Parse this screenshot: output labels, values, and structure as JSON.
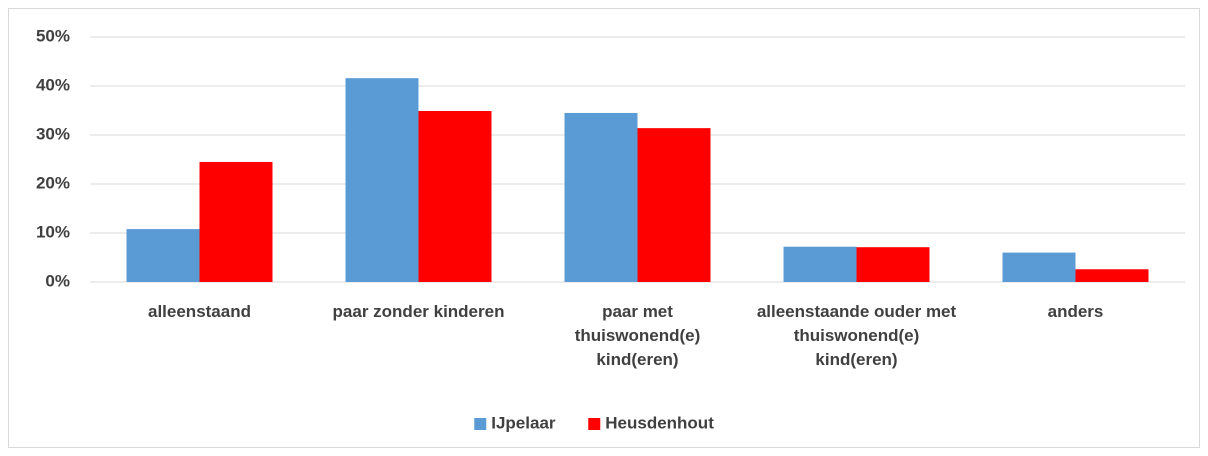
{
  "chart_data": {
    "type": "bar",
    "categories": [
      "alleenstaand",
      "paar zonder kinderen",
      "paar met thuiswonend(e) kind(eren)",
      "alleenstaande ouder met thuiswonend(e) kind(eren)",
      "anders"
    ],
    "series": [
      {
        "name": "IJpelaar",
        "color": "#5b9bd5",
        "values": [
          10.8,
          41.6,
          34.5,
          7.2,
          6.0
        ]
      },
      {
        "name": "Heusdenhout",
        "color": "#ff0000",
        "values": [
          24.5,
          34.9,
          31.4,
          7.1,
          2.6
        ]
      }
    ],
    "ylim": [
      0,
      50
    ],
    "yticks": [
      {
        "value": 0,
        "label": "0%"
      },
      {
        "value": 10,
        "label": "10%"
      },
      {
        "value": 20,
        "label": "20%"
      },
      {
        "value": 30,
        "label": "30%"
      },
      {
        "value": 40,
        "label": "40%"
      },
      {
        "value": 50,
        "label": "50%"
      }
    ],
    "grid": true,
    "legend": "bottom"
  }
}
